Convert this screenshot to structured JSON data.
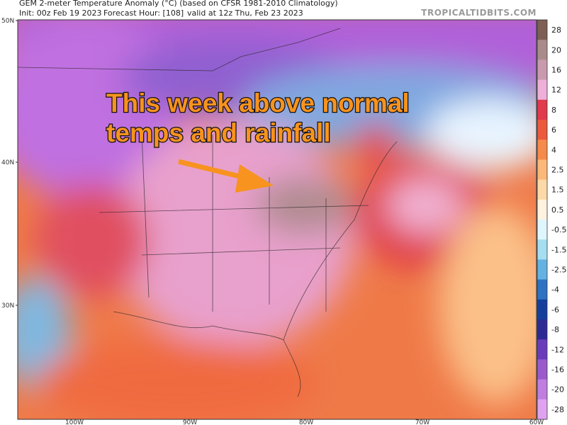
{
  "header": {
    "title": "GEM 2-meter Temperature Anomaly (°C) (based on CFSR 1981-2010 Climatology)",
    "init": "Init: 00z Feb 19 2023",
    "forecast_hour": "Forecast Hour: [108]",
    "valid": "valid at 12z Thu, Feb 23 2023",
    "watermark": "TROPICALTIDBITS.COM"
  },
  "map": {
    "lat_labels": [
      "50N",
      "40N",
      "30N"
    ],
    "lon_labels": [
      "100W",
      "90W",
      "80W",
      "70W",
      "60W"
    ]
  },
  "annotation": {
    "lines": [
      "This week above normal",
      "temps and rainfall"
    ]
  },
  "colorbar": {
    "labels": [
      "28",
      "20",
      "16",
      "12",
      "8",
      "6",
      "4",
      "2.5",
      "1.5",
      "0.5",
      "-0.5",
      "-1.5",
      "-2.5",
      "-4",
      "-6",
      "-8",
      "-12",
      "-16",
      "-20",
      "-28"
    ],
    "colors": [
      "#7d5f55",
      "#a98c8a",
      "#c99aae",
      "#eeb0d8",
      "#e03a4c",
      "#ec5a3e",
      "#f68a4a",
      "#fbb878",
      "#fdd9a8",
      "#fff3df",
      "#dff6fd",
      "#a4def0",
      "#64b2e2",
      "#2f72c2",
      "#143f9c",
      "#2e2a94",
      "#6a3cbc",
      "#9a5acc",
      "#c07ee0",
      "#dfa2f0"
    ]
  }
}
